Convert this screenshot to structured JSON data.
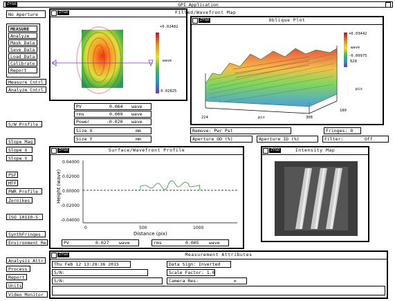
{
  "app": {
    "title": "GPI Application",
    "zygo_tag": "ZYGO"
  },
  "left_panel": {
    "aperture_label": "No Aperture",
    "buttons_group": [
      "MEASURE",
      "Analyze",
      "Mask Data",
      "Save Data",
      "Load Data",
      "Calibrate",
      "Report"
    ],
    "measure_cntrl": "Measure Cntrl",
    "analyze_cntrl": "Analyze Cntrl",
    "sw_profile": "S/W Profile",
    "slope_mag": "Slope Mag",
    "slope_x": "Slope X",
    "slope_y": "Slope Y",
    "psf": "PSF",
    "mtf": "MTF",
    "pwr_profile": "PWR Profile",
    "zernikes": "Zernikes",
    "iso": "ISO 10110-5",
    "synth_fringes": "SynthFringes",
    "environment": "Environment Re",
    "analysis_attr": "Analysis Attr",
    "process": "Process",
    "report": "Report",
    "units": "Units",
    "video_monitor": "Video Monitor"
  },
  "filled_plot": {
    "zygo": "ZYGO",
    "title": "Filled/Wavefront Map",
    "scale_max": "+0.02482",
    "scale_unit": "wave",
    "scale_min": "-0.02825"
  },
  "oblique_plot": {
    "zygo": "ZYGO",
    "title": "Oblique Plot",
    "scale_max": "+0.03442",
    "scale_unit": "wave",
    "scale_min": "-0.00975",
    "scale_extra": "828",
    "axis_pix": "pix",
    "axis_y_label": "pix",
    "tick_180": "180",
    "tick_224": "224",
    "tick_pix": "pix",
    "tick_308": "308"
  },
  "results": {
    "pv_label": "PV",
    "pv_value": "0.064",
    "pv_unit": "wave",
    "rms_label": "rms",
    "rms_value": "0.009",
    "rms_unit": "wave",
    "power_label": "Power",
    "power_value": "-0.020",
    "power_unit": "wave",
    "size_x_label": "Size X",
    "size_x_unit": "mm",
    "size_y_label": "Size Y",
    "size_y_unit": "mm"
  },
  "status_row": {
    "remove": "Remove: Pwr Pst",
    "fringes": "Fringes: 0",
    "aperture_od": "Aperture OD (%)",
    "aperture_id": "Aperture ID (%)",
    "filter": "Filter:",
    "filter_value": "Off"
  },
  "profile_plot": {
    "zygo": "ZYGO",
    "title": "Surface/Wavefront Profile",
    "ylabel": "Height (wave)",
    "xlabel": "Distance (pix)",
    "yticks": [
      "0.04000",
      "0.02000",
      "0.00000",
      "-0.02000",
      "-0.04000"
    ],
    "xticks": [
      "0",
      "500",
      "1000"
    ],
    "pv_label": "PV",
    "pv_value": "0.027",
    "pv_unit": "wave",
    "rms_label": "rms",
    "rms_value": "0.005",
    "rms_unit": "wave"
  },
  "intensity_map": {
    "zygo": "ZYGO",
    "title": "Intensity Map"
  },
  "attributes": {
    "zygo": "ZYGO",
    "title": "Measurement Attributes",
    "date": "Thu Feb 12 13:28:36 2015",
    "sn_label_1": "S/N:",
    "sn_label_2": "S/N:",
    "data_sign": "Data Sign: Inverted",
    "scale_factor": "Scale Factor: 1.0",
    "camera_res": "Camera Res:"
  }
}
